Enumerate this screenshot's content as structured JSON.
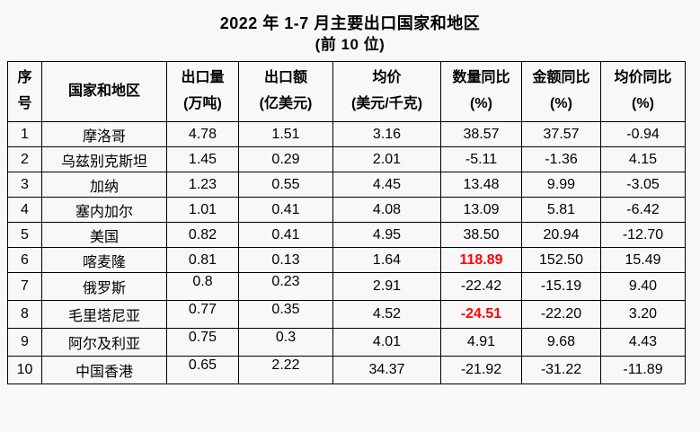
{
  "page": {
    "background_color": "#f8f8f8",
    "text_color": "#000000",
    "highlight_color": "#ff0000"
  },
  "header": {
    "title": "2022 年 1-7 月主要出口国家和地区",
    "subtitle": "(前 10 位)"
  },
  "chart_data": {
    "type": "table",
    "title": "2022 年 1-7 月主要出口国家和地区",
    "subtitle": "(前 10 位)",
    "columns": [
      {
        "key": "rank",
        "label": "序",
        "label2": "号"
      },
      {
        "key": "country",
        "label": "国家和地区",
        "label2": ""
      },
      {
        "key": "volume",
        "label": "出口量",
        "label2": "(万吨)"
      },
      {
        "key": "value",
        "label": "出口额",
        "label2": "(亿美元)"
      },
      {
        "key": "avg_price",
        "label": "均价",
        "label2": "(美元/千克)"
      },
      {
        "key": "qty_yoy",
        "label": "数量同比",
        "label2": "(%)"
      },
      {
        "key": "value_yoy",
        "label": "金额同比",
        "label2": "(%)"
      },
      {
        "key": "price_yoy",
        "label": "均价同比",
        "label2": "(%)"
      }
    ],
    "rows": [
      {
        "rank": "1",
        "country": "摩洛哥",
        "volume": "4.78",
        "value": "1.51",
        "avg_price": "3.16",
        "qty_yoy": "38.57",
        "value_yoy": "37.57",
        "price_yoy": "-0.94",
        "red_cols": []
      },
      {
        "rank": "2",
        "country": "乌兹别克斯坦",
        "volume": "1.45",
        "value": "0.29",
        "avg_price": "2.01",
        "qty_yoy": "-5.11",
        "value_yoy": "-1.36",
        "price_yoy": "4.15",
        "red_cols": []
      },
      {
        "rank": "3",
        "country": "加纳",
        "volume": "1.23",
        "value": "0.55",
        "avg_price": "4.45",
        "qty_yoy": "13.48",
        "value_yoy": "9.99",
        "price_yoy": "-3.05",
        "red_cols": []
      },
      {
        "rank": "4",
        "country": "塞内加尔",
        "volume": "1.01",
        "value": "0.41",
        "avg_price": "4.08",
        "qty_yoy": "13.09",
        "value_yoy": "5.81",
        "price_yoy": "-6.42",
        "red_cols": []
      },
      {
        "rank": "5",
        "country": "美国",
        "volume": "0.82",
        "value": "0.41",
        "avg_price": "4.95",
        "qty_yoy": "38.50",
        "value_yoy": "20.94",
        "price_yoy": "-12.70",
        "red_cols": []
      },
      {
        "rank": "6",
        "country": "喀麦隆",
        "volume": "0.81",
        "value": "0.13",
        "avg_price": "1.64",
        "qty_yoy": "118.89",
        "value_yoy": "152.50",
        "price_yoy": "15.49",
        "red_cols": [
          "qty_yoy"
        ]
      },
      {
        "rank": "7",
        "country": "俄罗斯",
        "volume": "0.8",
        "value": "0.23",
        "avg_price": "2.91",
        "qty_yoy": "-22.42",
        "value_yoy": "-15.19",
        "price_yoy": "9.40",
        "red_cols": []
      },
      {
        "rank": "8",
        "country": "毛里塔尼亚",
        "volume": "0.77",
        "value": "0.35",
        "avg_price": "4.52",
        "qty_yoy": "-24.51",
        "value_yoy": "-22.20",
        "price_yoy": "3.20",
        "red_cols": [
          "qty_yoy"
        ]
      },
      {
        "rank": "9",
        "country": "阿尔及利亚",
        "volume": "0.75",
        "value": "0.3",
        "avg_price": "4.01",
        "qty_yoy": "4.91",
        "value_yoy": "9.68",
        "price_yoy": "4.43",
        "red_cols": []
      },
      {
        "rank": "10",
        "country": "中国香港",
        "volume": "0.65",
        "value": "2.22",
        "avg_price": "34.37",
        "qty_yoy": "-21.92",
        "value_yoy": "-31.22",
        "price_yoy": "-11.89",
        "red_cols": []
      }
    ]
  }
}
